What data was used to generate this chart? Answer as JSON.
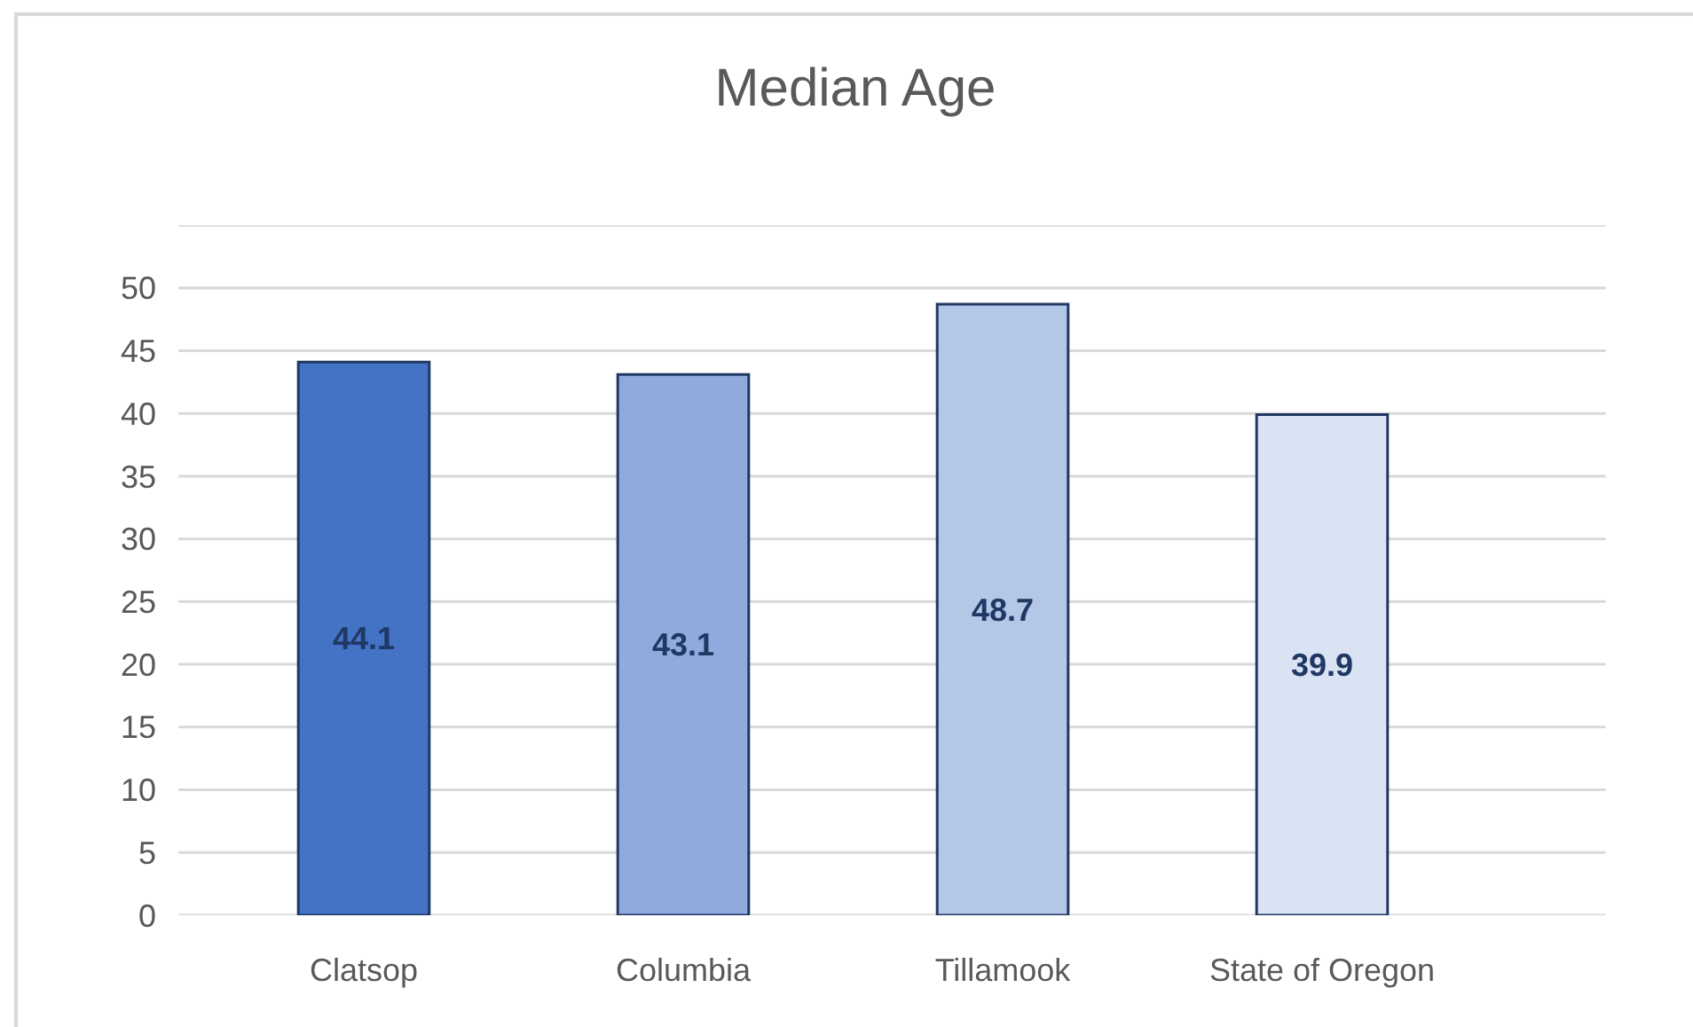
{
  "chart_data": {
    "type": "bar",
    "title": "Median Age",
    "categories": [
      "Clatsop",
      "Columbia",
      "Tillamook",
      "State of Oregon"
    ],
    "values": [
      44.1,
      43.1,
      48.7,
      39.9
    ],
    "colors": [
      "#4472c4",
      "#8faadc",
      "#b4c7e7",
      "#dae3f3"
    ],
    "ylim": [
      0,
      55
    ],
    "yticks": [
      0,
      5,
      10,
      15,
      20,
      25,
      30,
      35,
      40,
      45,
      50,
      {
        "value": 55,
        "label": null
      }
    ],
    "grid": "y",
    "data_labels": true
  }
}
